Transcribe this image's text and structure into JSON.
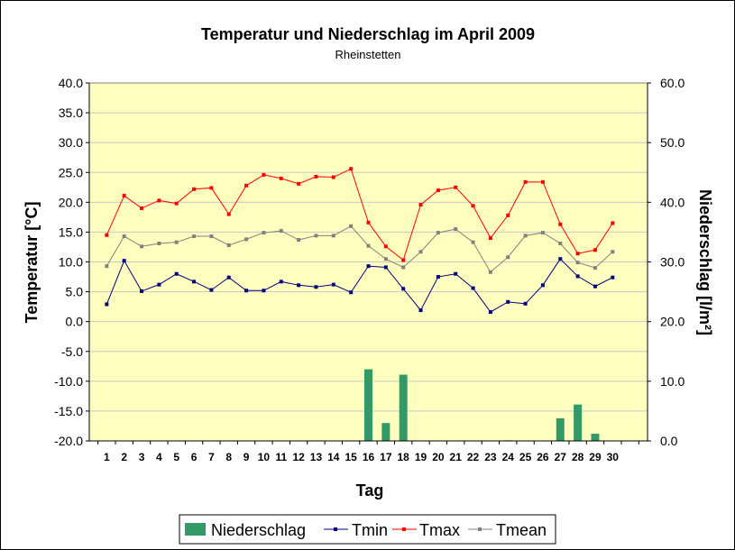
{
  "chart_data": {
    "type": "bar+line",
    "title": "Temperatur und Niederschlag im April 2009",
    "subtitle": "Rheinstetten",
    "xlabel": "Tag",
    "ylabel_left": "Temperatur [°C]",
    "ylabel_right": "Niederschlag [l/m²]",
    "ylim_left": [
      -20,
      40
    ],
    "ylim_right": [
      0,
      60
    ],
    "yticks_left": [
      "40.0",
      "35.0",
      "30.0",
      "25.0",
      "20.0",
      "15.0",
      "10.0",
      "5.0",
      "0.0",
      "-5.0",
      "-10.0",
      "-15.0",
      "-20.0"
    ],
    "yticks_right": [
      "60.0",
      "50.0",
      "40.0",
      "30.0",
      "20.0",
      "10.0",
      "0.0"
    ],
    "categories": [
      "1",
      "2",
      "3",
      "4",
      "5",
      "6",
      "7",
      "8",
      "9",
      "10",
      "11",
      "12",
      "13",
      "14",
      "15",
      "16",
      "17",
      "18",
      "19",
      "20",
      "21",
      "22",
      "23",
      "24",
      "25",
      "26",
      "27",
      "28",
      "29",
      "30"
    ],
    "grid": "horizontal",
    "legend_position": "bottom",
    "plot_background": "#FFFFC0",
    "series": [
      {
        "name": "Niederschlag",
        "type": "bar",
        "axis": "right",
        "color": "#339966",
        "values": [
          0,
          0,
          0,
          0,
          0,
          0,
          0,
          0,
          0,
          0,
          0,
          0,
          0,
          0,
          0,
          12.0,
          3.0,
          11.1,
          0,
          0,
          0,
          0,
          0,
          0.1,
          0,
          0,
          3.8,
          6.1,
          1.2,
          0
        ]
      },
      {
        "name": "Tmin",
        "type": "line",
        "axis": "left",
        "color": "#000080",
        "values": [
          2.9,
          10.2,
          5.1,
          6.2,
          8.0,
          6.7,
          5.3,
          7.4,
          5.2,
          5.2,
          6.7,
          6.1,
          5.8,
          6.2,
          4.9,
          9.3,
          9.1,
          5.5,
          1.9,
          7.5,
          8.0,
          5.6,
          1.6,
          3.3,
          3.0,
          6.1,
          10.5,
          7.6,
          5.9,
          7.4
        ]
      },
      {
        "name": "Tmax",
        "type": "line",
        "axis": "left",
        "color": "#FF0000",
        "values": [
          14.5,
          21.1,
          19.0,
          20.3,
          19.8,
          22.2,
          22.4,
          18.0,
          22.8,
          24.6,
          24.0,
          23.1,
          24.3,
          24.2,
          25.6,
          16.6,
          12.6,
          10.3,
          19.6,
          22.0,
          22.5,
          19.4,
          14.0,
          17.8,
          23.4,
          23.4,
          16.3,
          11.4,
          12.0,
          16.5
        ]
      },
      {
        "name": "Tmean",
        "type": "line",
        "axis": "left",
        "color": "#808080",
        "values": [
          9.3,
          14.3,
          12.6,
          13.1,
          13.3,
          14.3,
          14.3,
          12.8,
          13.8,
          14.9,
          15.2,
          13.7,
          14.4,
          14.4,
          16.0,
          12.7,
          10.5,
          9.1,
          11.7,
          14.9,
          15.5,
          13.3,
          8.3,
          10.8,
          14.4,
          14.9,
          13.1,
          9.9,
          9.0,
          11.7
        ]
      }
    ]
  }
}
